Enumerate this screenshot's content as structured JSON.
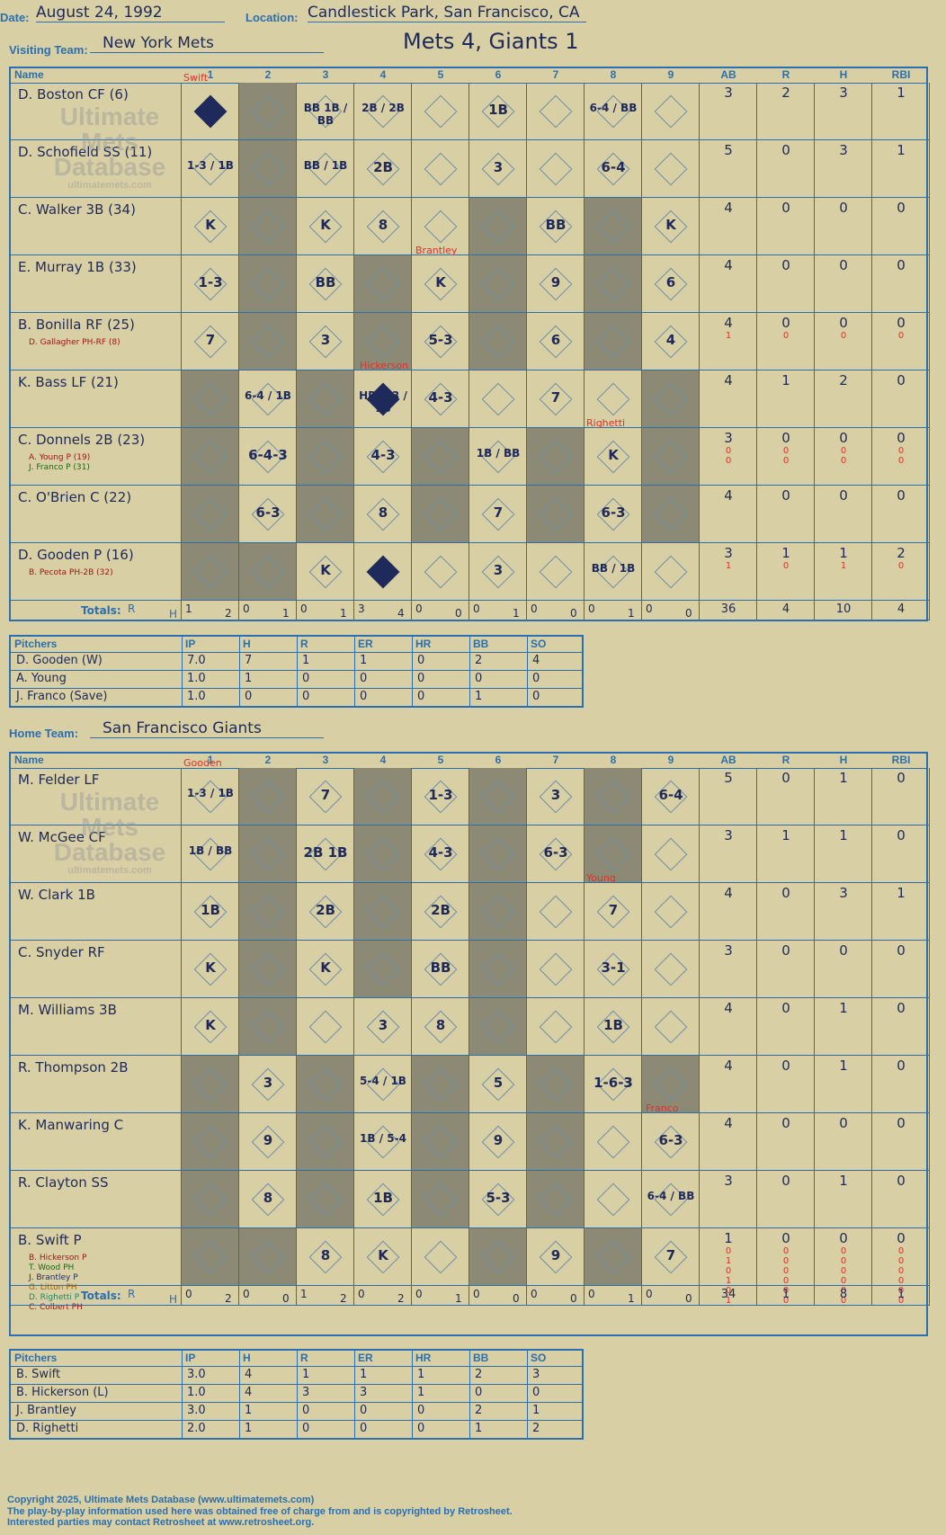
{
  "header": {
    "date_label": "Date:",
    "date": "August 24, 1992",
    "location_label": "Location:",
    "location": "Candlestick Park, San Francisco, CA",
    "visiting_label": "Visiting Team:",
    "visiting": "New York Mets",
    "home_label": "Home Team:",
    "home": "San Francisco Giants",
    "title": "Mets 4, Giants 1"
  },
  "cols": {
    "name": "Name",
    "innings": [
      "1",
      "2",
      "3",
      "4",
      "5",
      "6",
      "7",
      "8",
      "9"
    ],
    "stats": [
      "AB",
      "R",
      "H",
      "RBI"
    ]
  },
  "watermark": {
    "line1": "Ultimate",
    "line2": "Mets",
    "line3": "Database",
    "line4": "ultimatemets.com"
  },
  "mets": {
    "batters": [
      {
        "name": "D. Boston CF (6)",
        "subs": [],
        "stats": [
          "3",
          "2",
          "3",
          "1"
        ],
        "substats": []
      },
      {
        "name": "D. Schofield SS (11)",
        "subs": [],
        "stats": [
          "5",
          "0",
          "3",
          "1"
        ],
        "substats": []
      },
      {
        "name": "C. Walker 3B (34)",
        "subs": [],
        "stats": [
          "4",
          "0",
          "0",
          "0"
        ],
        "substats": []
      },
      {
        "name": "E. Murray 1B (33)",
        "subs": [],
        "stats": [
          "4",
          "0",
          "0",
          "0"
        ],
        "substats": []
      },
      {
        "name": "B. Bonilla RF (25)",
        "subs": [
          "D. Gallagher PH-RF (8)"
        ],
        "stats": [
          "4",
          "0",
          "0",
          "0"
        ],
        "substats": [
          [
            "1",
            "0",
            "0",
            "0"
          ]
        ]
      },
      {
        "name": "K. Bass LF (21)",
        "subs": [],
        "stats": [
          "4",
          "1",
          "2",
          "0"
        ],
        "substats": []
      },
      {
        "name": "C. Donnels 2B (23)",
        "subs": [
          "A. Young P (19)",
          "J. Franco P (31)"
        ],
        "stats": [
          "3",
          "0",
          "0",
          "0"
        ],
        "substats": [
          [
            "0",
            "0",
            "0",
            "0"
          ],
          [
            "0",
            "0",
            "0",
            "0"
          ]
        ]
      },
      {
        "name": "C. O'Brien C (22)",
        "subs": [],
        "stats": [
          "4",
          "0",
          "0",
          "0"
        ],
        "substats": []
      },
      {
        "name": "D. Gooden P (16)",
        "subs": [
          "B. Pecota PH-2B (32)"
        ],
        "stats": [
          "3",
          "1",
          "1",
          "2"
        ],
        "substats": [
          [
            "1",
            "0",
            "1",
            "0"
          ]
        ]
      }
    ],
    "totals_label": "Totals:",
    "totals_rh": [
      "R",
      "H"
    ],
    "inning_totals": [
      [
        "1",
        "2"
      ],
      [
        "0",
        "1"
      ],
      [
        "0",
        "1"
      ],
      [
        "3",
        "4"
      ],
      [
        "0",
        "0"
      ],
      [
        "0",
        "1"
      ],
      [
        "0",
        "0"
      ],
      [
        "0",
        "1"
      ],
      [
        "0",
        "0"
      ]
    ],
    "totals": [
      "36",
      "4",
      "10",
      "4"
    ],
    "pitchers_header": [
      "Pitchers",
      "IP",
      "H",
      "R",
      "ER",
      "HR",
      "BB",
      "SO"
    ],
    "pitchers": [
      [
        "D. Gooden (W)",
        "7.0",
        "7",
        "1",
        "1",
        "0",
        "2",
        "4"
      ],
      [
        "A. Young",
        "1.0",
        "1",
        "0",
        "0",
        "0",
        "0",
        "0"
      ],
      [
        "J. Franco (Save)",
        "1.0",
        "0",
        "0",
        "0",
        "0",
        "1",
        "0"
      ]
    ],
    "plays": [
      [
        "HR",
        "",
        "BB 1B / BB",
        "2B / 2B",
        "",
        "1B",
        "",
        "6-4 / BB",
        ""
      ],
      [
        "1-3 / 1B",
        "",
        "BB / 1B",
        "2B",
        "",
        "3",
        "",
        "6-4",
        ""
      ],
      [
        "K",
        "",
        "K",
        "8",
        "",
        "",
        "BB",
        "",
        "K"
      ],
      [
        "1-3",
        "",
        "BB",
        "",
        "K",
        "",
        "9",
        "",
        "6"
      ],
      [
        "7",
        "",
        "3",
        "",
        "5-3",
        "",
        "6",
        "",
        "4"
      ],
      [
        "",
        "6-4 / 1B",
        "",
        "HR 4-3 / 1B",
        "4-3",
        "",
        "7",
        "",
        ""
      ],
      [
        "",
        "6-4-3",
        "",
        "4-3",
        "",
        "1B / BB",
        "",
        "K",
        ""
      ],
      [
        "",
        "6-3",
        "",
        "8",
        "",
        "7",
        "",
        "6-3",
        ""
      ],
      [
        "",
        "",
        "K",
        "HR",
        "",
        "3",
        "",
        "BB / 1B",
        ""
      ]
    ],
    "pitcher_notes": [
      "Swift",
      "Brantley",
      "Hickerson",
      "Righetti"
    ]
  },
  "giants": {
    "batters": [
      {
        "name": "M. Felder LF",
        "subs": [],
        "stats": [
          "5",
          "0",
          "1",
          "0"
        ],
        "substats": []
      },
      {
        "name": "W. McGee CF",
        "subs": [],
        "stats": [
          "3",
          "1",
          "1",
          "0"
        ],
        "substats": []
      },
      {
        "name": "W. Clark 1B",
        "subs": [],
        "stats": [
          "4",
          "0",
          "3",
          "1"
        ],
        "substats": []
      },
      {
        "name": "C. Snyder RF",
        "subs": [],
        "stats": [
          "3",
          "0",
          "0",
          "0"
        ],
        "substats": []
      },
      {
        "name": "M. Williams 3B",
        "subs": [],
        "stats": [
          "4",
          "0",
          "1",
          "0"
        ],
        "substats": []
      },
      {
        "name": "R. Thompson 2B",
        "subs": [],
        "stats": [
          "4",
          "0",
          "1",
          "0"
        ],
        "substats": []
      },
      {
        "name": "K. Manwaring C",
        "subs": [],
        "stats": [
          "4",
          "0",
          "0",
          "0"
        ],
        "substats": []
      },
      {
        "name": "R. Clayton SS",
        "subs": [],
        "stats": [
          "3",
          "0",
          "1",
          "0"
        ],
        "substats": []
      },
      {
        "name": "B. Swift P",
        "subs": [
          "B. Hickerson P",
          "T. Wood PH",
          "J. Brantley P",
          "G. Litton PH",
          "D. Righetti P",
          "C. Colbert PH"
        ],
        "stats": [
          "1",
          "0",
          "0",
          "0"
        ],
        "substats": [
          [
            "0",
            "0",
            "0",
            "0"
          ],
          [
            "1",
            "0",
            "0",
            "0"
          ],
          [
            "0",
            "0",
            "0",
            "0"
          ],
          [
            "1",
            "0",
            "0",
            "0"
          ],
          [
            "0",
            "0",
            "0",
            "0"
          ],
          [
            "1",
            "0",
            "0",
            "0"
          ]
        ]
      }
    ],
    "totals_label": "Totals:",
    "totals_rh": [
      "R",
      "H"
    ],
    "inning_totals": [
      [
        "0",
        "2"
      ],
      [
        "0",
        "0"
      ],
      [
        "1",
        "2"
      ],
      [
        "0",
        "2"
      ],
      [
        "0",
        "1"
      ],
      [
        "0",
        "0"
      ],
      [
        "0",
        "0"
      ],
      [
        "0",
        "1"
      ],
      [
        "0",
        "0"
      ]
    ],
    "totals": [
      "34",
      "1",
      "8",
      "1"
    ],
    "pitchers_header": [
      "Pitchers",
      "IP",
      "H",
      "R",
      "ER",
      "HR",
      "BB",
      "SO"
    ],
    "pitchers": [
      [
        "B. Swift",
        "3.0",
        "4",
        "1",
        "1",
        "1",
        "2",
        "3"
      ],
      [
        "B. Hickerson (L)",
        "1.0",
        "4",
        "3",
        "3",
        "1",
        "0",
        "0"
      ],
      [
        "J. Brantley",
        "3.0",
        "1",
        "0",
        "0",
        "0",
        "2",
        "1"
      ],
      [
        "D. Righetti",
        "2.0",
        "1",
        "0",
        "0",
        "0",
        "1",
        "2"
      ]
    ],
    "plays": [
      [
        "1-3 / 1B",
        "",
        "7",
        "",
        "1-3",
        "",
        "3",
        "",
        "6-4"
      ],
      [
        "1B / BB",
        "",
        "2B 1B",
        "",
        "4-3",
        "",
        "6-3",
        "",
        ""
      ],
      [
        "1B",
        "",
        "2B",
        "",
        "2B",
        "",
        "",
        "7",
        ""
      ],
      [
        "K",
        "",
        "K",
        "",
        "BB",
        "",
        "",
        "3-1",
        ""
      ],
      [
        "K",
        "",
        "",
        "3",
        "8",
        "",
        "",
        "1B",
        ""
      ],
      [
        "",
        "3",
        "",
        "5-4 / 1B",
        "",
        "5",
        "",
        "1-6-3",
        ""
      ],
      [
        "",
        "9",
        "",
        "1B / 5-4",
        "",
        "9",
        "",
        "",
        "6-3"
      ],
      [
        "",
        "8",
        "",
        "1B",
        "",
        "5-3",
        "",
        "",
        "6-4 / BB"
      ],
      [
        "",
        "",
        "8",
        "K",
        "",
        "",
        "9",
        "",
        "7"
      ]
    ],
    "pitcher_notes": [
      "Gooden",
      "Young",
      "Franco"
    ]
  },
  "footer": {
    "line1": "Copyright 2025, Ultimate Mets Database (www.ultimatemets.com)",
    "line2": "The play-by-play information used here was obtained free of charge from and is copyrighted by Retrosheet.",
    "line3": "Interested parties may contact Retrosheet at www.retrosheet.org."
  },
  "colors": {
    "paper": "#d9cfa4",
    "grid": "#2a6fb0",
    "shade": "#8c8a74",
    "ink": "#1e2a5a",
    "red": "#e0302a"
  }
}
